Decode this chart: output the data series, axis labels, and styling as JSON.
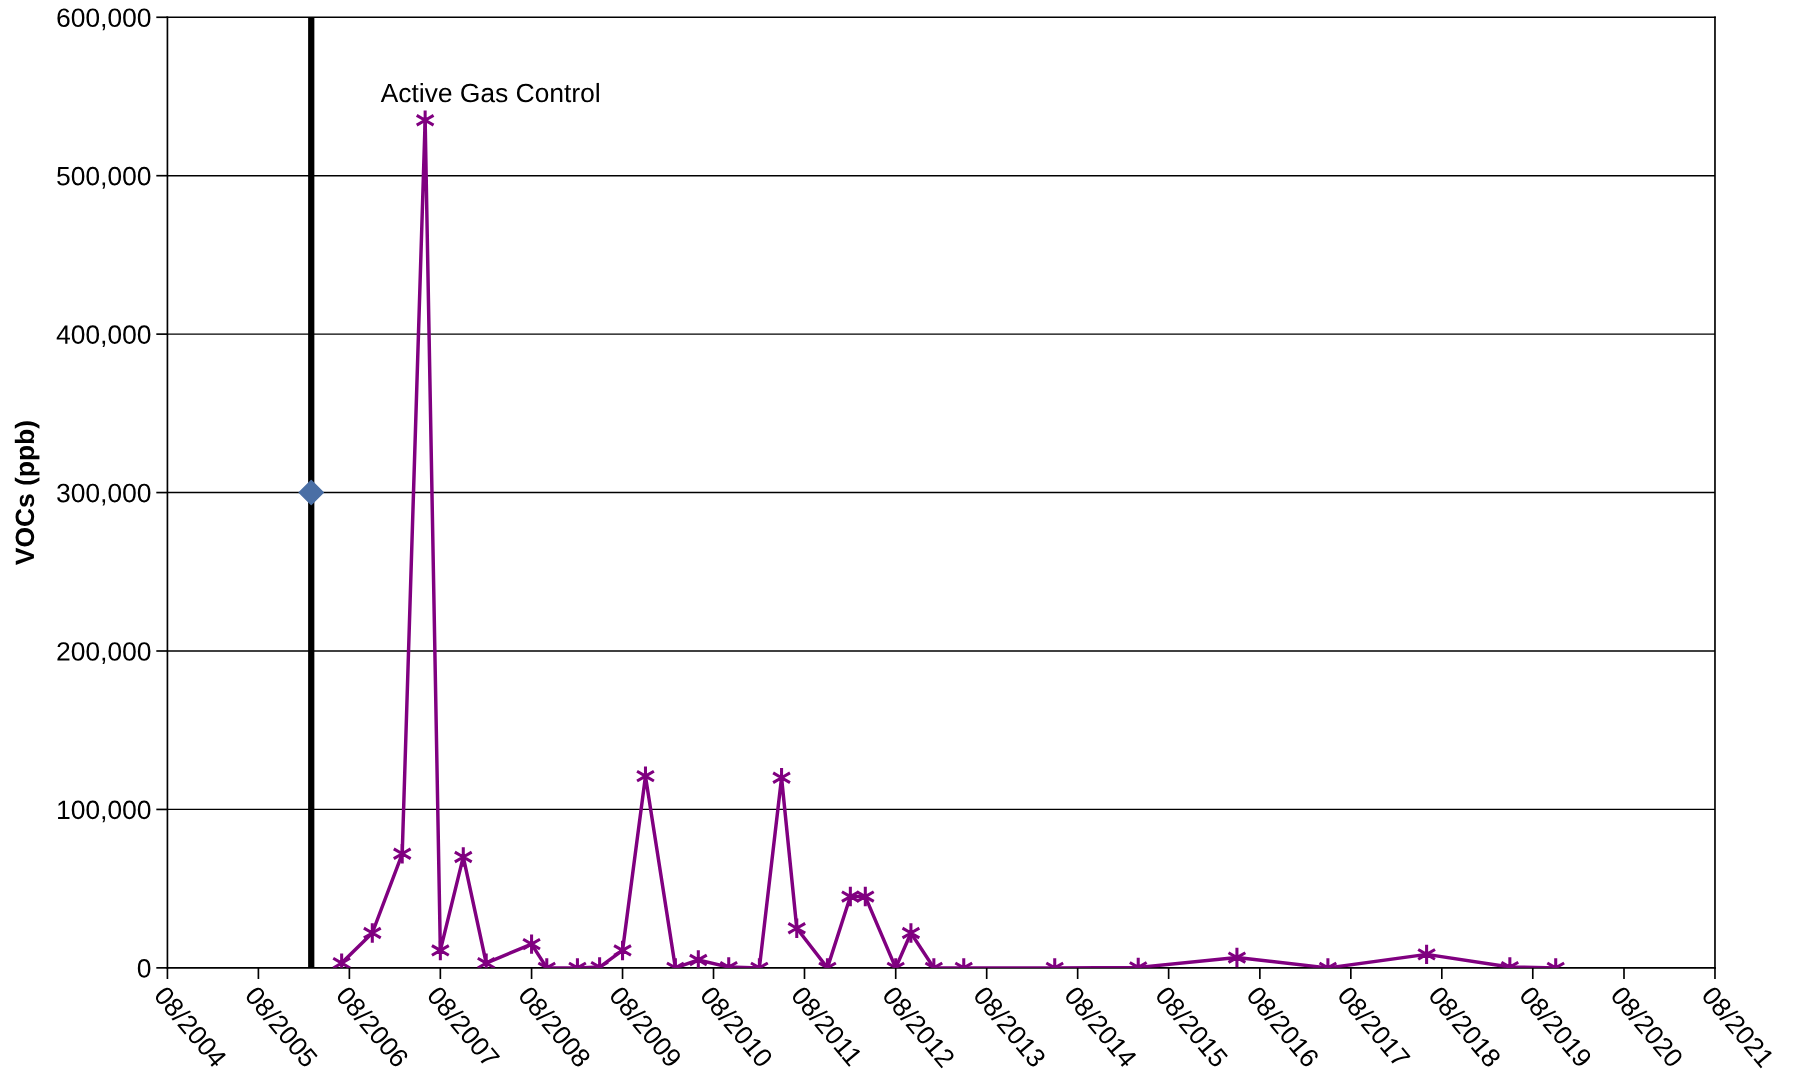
{
  "chart_data": {
    "type": "line",
    "ylabel": "VOCs (ppb)",
    "series": [
      {
        "color": "#800080",
        "marker": "cross",
        "line_style": "solid",
        "x": [
          "2006-07",
          "2006-11",
          "2007-03",
          "2007-06",
          "2007-08",
          "2007-11",
          "2008-02",
          "2008-08",
          "2008-10",
          "2009-02",
          "2009-05",
          "2009-08",
          "2009-11",
          "2010-03",
          "2010-06",
          "2010-10",
          "2011-02",
          "2011-05",
          "2011-07",
          "2011-11",
          "2012-02",
          "2012-04",
          "2012-08",
          "2012-10",
          "2013-01",
          "2013-05",
          "2014-05",
          "2015-04",
          "2016-05",
          "2017-05",
          "2018-06",
          "2019-05",
          "2019-11"
        ],
        "values": [
          3000,
          22000,
          72000,
          535000,
          11000,
          70000,
          3000,
          15000,
          0,
          0,
          500,
          11000,
          121000,
          0,
          5000,
          500,
          0,
          120000,
          25000,
          0,
          45000,
          45000,
          0,
          22000,
          0,
          0,
          0,
          300,
          6500,
          0,
          8500,
          500,
          0
        ]
      },
      {
        "type": "scatter",
        "color": "#4a6fa5",
        "marker": "diamond",
        "x": [
          "2006-03"
        ],
        "values": [
          300000
        ]
      }
    ],
    "ref_lines": [
      {
        "axis": "x",
        "value": "2006-03",
        "label": "Active Gas Control",
        "color": "#000000",
        "line_style": "solid"
      }
    ],
    "xlim": [
      "2004-08",
      "2021-08"
    ],
    "xticks": [
      {
        "value": "2004-08",
        "label": "08/2004"
      },
      {
        "value": "2005-08",
        "label": "08/2005"
      },
      {
        "value": "2006-08",
        "label": "08/2006"
      },
      {
        "value": "2007-08",
        "label": "08/2007"
      },
      {
        "value": "2008-08",
        "label": "08/2008"
      },
      {
        "value": "2009-08",
        "label": "08/2009"
      },
      {
        "value": "2010-08",
        "label": "08/2010"
      },
      {
        "value": "2011-08",
        "label": "08/2011"
      },
      {
        "value": "2012-08",
        "label": "08/2012"
      },
      {
        "value": "2013-08",
        "label": "08/2013"
      },
      {
        "value": "2014-08",
        "label": "08/2014"
      },
      {
        "value": "2015-08",
        "label": "08/2015"
      },
      {
        "value": "2016-08",
        "label": "08/2016"
      },
      {
        "value": "2017-08",
        "label": "08/2017"
      },
      {
        "value": "2018-08",
        "label": "08/2018"
      },
      {
        "value": "2019-08",
        "label": "08/2019"
      },
      {
        "value": "2020-08",
        "label": "08/2020"
      },
      {
        "value": "2021-08",
        "label": "08/2021"
      }
    ],
    "ylim": [
      0,
      600000
    ],
    "yticks": [
      {
        "value": 0,
        "label": "0"
      },
      {
        "value": 100000,
        "label": "100,000"
      },
      {
        "value": 200000,
        "label": "200,000"
      },
      {
        "value": 300000,
        "label": "300,000"
      },
      {
        "value": 400000,
        "label": "400,000"
      },
      {
        "value": 500000,
        "label": "500,000"
      },
      {
        "value": 600000,
        "label": "600,000"
      }
    ],
    "grid": "y",
    "legend": false
  }
}
